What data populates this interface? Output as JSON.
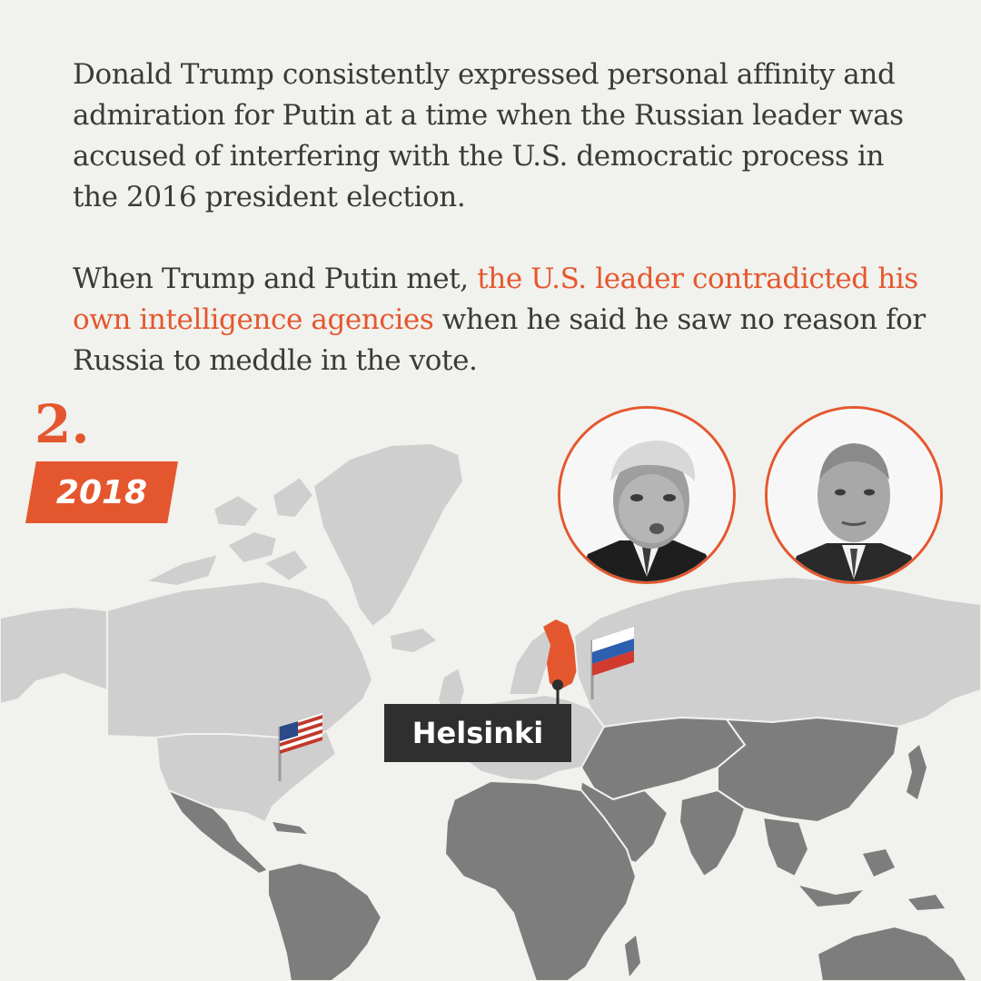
{
  "paragraph1": "Donald Trump consistently expressed personal affinity and admiration for Putin at a time when the Russian leader was accused of interfering with the U.S. democratic process in the 2016 president election.",
  "paragraph2": {
    "before": "When Trump and Putin met, ",
    "highlight": "the U.S. leader contradicted his own intelligence agencies",
    "after": " when he said he saw no reason for Russia to meddle in the vote."
  },
  "step_number": "2.",
  "year": "2018",
  "city_label": "Helsinki",
  "colors": {
    "accent": "#e4572e",
    "background": "#f1f1ed",
    "land_light": "#cfcfcf",
    "land_dark": "#7d7d7d",
    "label_bg": "#2f2f2f"
  },
  "markers": [
    {
      "icon": "us-flag-icon",
      "country": "United States"
    },
    {
      "icon": "russia-flag-icon",
      "country": "Russia"
    },
    {
      "icon": "finland-highlight",
      "country": "Finland"
    }
  ],
  "portraits": [
    "trump-portrait",
    "putin-portrait"
  ]
}
